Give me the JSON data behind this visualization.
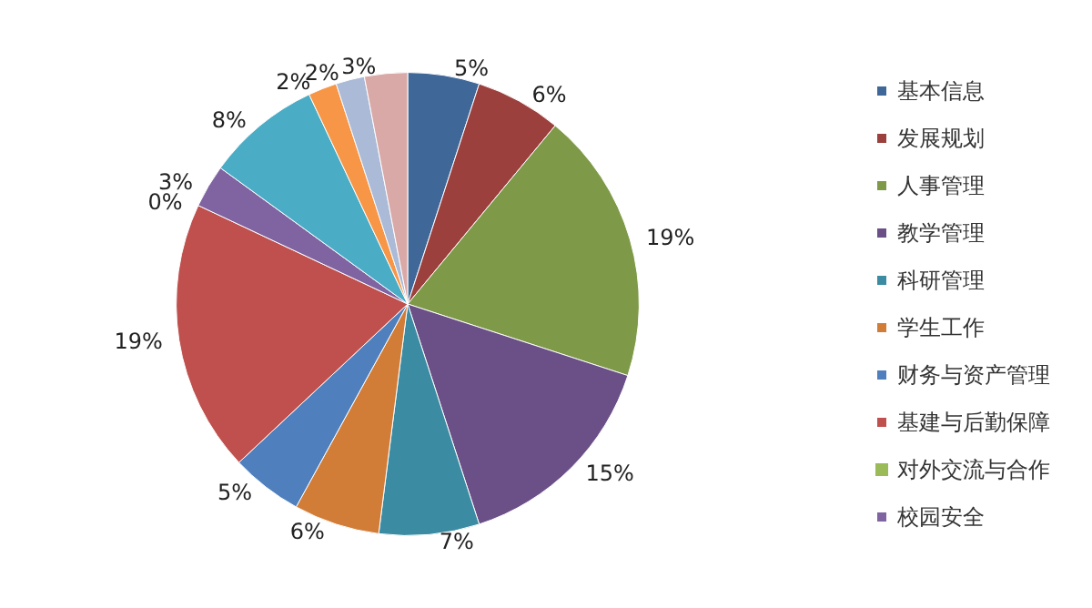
{
  "chart_data": {
    "type": "pie",
    "categories": [
      "基本信息",
      "发展规划",
      "人事管理",
      "教学管理",
      "科研管理",
      "学生工作",
      "财务与资产管理",
      "基建与后勤保障",
      "对外交流与合作",
      "校园安全",
      null,
      null,
      null,
      null
    ],
    "values": [
      5,
      6,
      19,
      15,
      7,
      6,
      5,
      19,
      0,
      3,
      8,
      2,
      2,
      3
    ],
    "value_labels": [
      "5%",
      "6%",
      "19%",
      "15%",
      "7%",
      "6%",
      "5%",
      "19%",
      "0%",
      "3%",
      "8%",
      "2%",
      "2%",
      "3%"
    ],
    "colors": [
      "#3f6899",
      "#9c403d",
      "#7e9a48",
      "#6b4f87",
      "#3b8ca2",
      "#d17d38",
      "#4f80bd",
      "#c0504d",
      "#9bbb59",
      "#8064a2",
      "#4bacc6",
      "#f79646",
      "#aabad7",
      "#d9a9a8"
    ],
    "legend": "right"
  }
}
